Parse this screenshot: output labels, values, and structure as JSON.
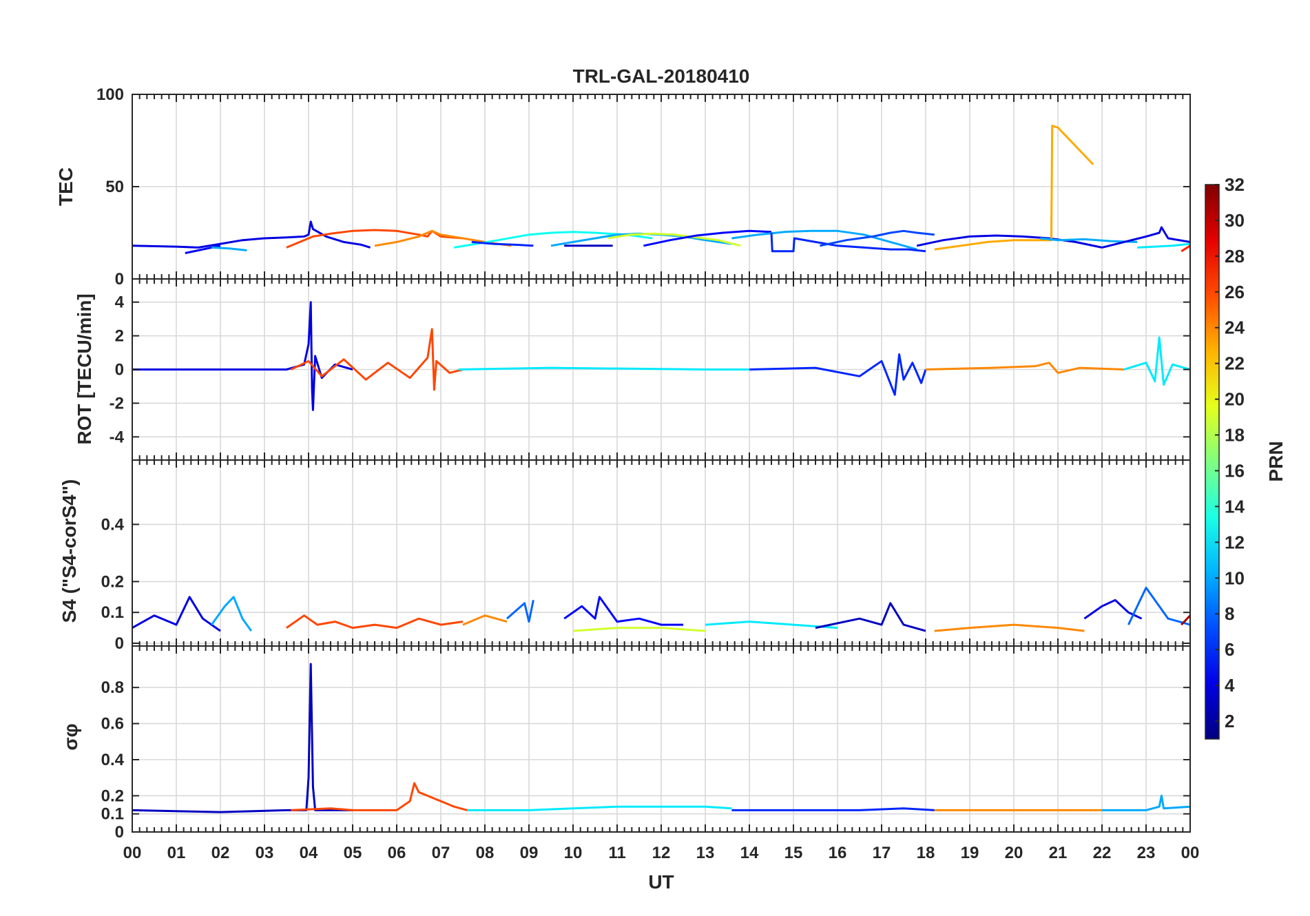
{
  "chart_data": {
    "type": "line",
    "title": "TRL-GAL-20180410",
    "xlabel": "UT",
    "x_tick_labels": [
      "00",
      "01",
      "02",
      "03",
      "04",
      "05",
      "06",
      "07",
      "08",
      "09",
      "10",
      "11",
      "12",
      "13",
      "14",
      "15",
      "16",
      "17",
      "18",
      "19",
      "20",
      "21",
      "22",
      "23",
      "00"
    ],
    "xlim": [
      0,
      24
    ],
    "colorbar": {
      "label": "PRN",
      "colormap": "jet",
      "range": [
        1,
        32
      ],
      "tick_labels": [
        "2",
        "4",
        "6",
        "8",
        "10",
        "12",
        "14",
        "16",
        "18",
        "20",
        "22",
        "24",
        "26",
        "28",
        "30",
        "32"
      ]
    },
    "panels": [
      {
        "ylabel": "TEC",
        "ylim": [
          0,
          100
        ],
        "y_tick_labels": [
          "0",
          "50",
          "100"
        ],
        "series": [
          {
            "prn": 4,
            "x": [
              0,
              1,
              1.5,
              2,
              2.5,
              3,
              3.5,
              3.9,
              4.0,
              4.05,
              4.1,
              4.4,
              4.8,
              5.2,
              5.4
            ],
            "y": [
              18,
              17.5,
              17,
              19,
              21,
              22,
              22.5,
              23,
              24,
              31,
              27,
              23,
              20,
              18.5,
              17
            ]
          },
          {
            "prn": 5,
            "x": [
              1.2,
              1.6,
              2.0
            ],
            "y": [
              14,
              16,
              18
            ]
          },
          {
            "prn": 10,
            "x": [
              1.8,
              2.2,
              2.6
            ],
            "y": [
              17,
              16.5,
              15.5
            ]
          },
          {
            "prn": 26,
            "x": [
              3.5,
              3.8,
              4.1,
              4.5,
              5.0,
              5.5,
              6.0,
              6.5,
              6.7,
              6.8,
              7.0,
              7.5
            ],
            "y": [
              17,
              20,
              23,
              24.5,
              26,
              26.5,
              26,
              24,
              23,
              26,
              23,
              22
            ]
          },
          {
            "prn": 24,
            "x": [
              5.5,
              6.0,
              6.5,
              6.8,
              7.0,
              7.5,
              8.0,
              8.6
            ],
            "y": [
              18,
              20,
              23,
              26,
              24,
              22,
              20,
              18
            ]
          },
          {
            "prn": 13,
            "x": [
              7.3,
              7.8,
              8.3,
              9.0,
              9.5,
              10.0,
              10.5,
              11.2,
              11.8
            ],
            "y": [
              17,
              19,
              21,
              24,
              25,
              25.5,
              25,
              24,
              22
            ]
          },
          {
            "prn": 6,
            "x": [
              7.7,
              8.2,
              8.7,
              9.1
            ],
            "y": [
              20,
              19,
              18.5,
              18
            ]
          },
          {
            "prn": 10,
            "x": [
              9.5,
              10,
              10.5,
              11,
              11.5,
              12,
              12.5,
              13.0,
              13.6
            ],
            "y": [
              18,
              20,
              22,
              24,
              24.5,
              24,
              23,
              21,
              19
            ]
          },
          {
            "prn": 3,
            "x": [
              9.8,
              10.4,
              10.9
            ],
            "y": [
              18,
              18,
              18
            ]
          },
          {
            "prn": 19,
            "x": [
              10.8,
              11.3,
              11.8,
              12.3,
              12.8,
              13.3,
              13.8
            ],
            "y": [
              22,
              24,
              24.5,
              24,
              22.5,
              21,
              18
            ]
          },
          {
            "prn": 5,
            "x": [
              11.6,
              12.2,
              12.8,
              13.4,
              14.0,
              14.5
            ],
            "y": [
              18,
              21,
              23.5,
              25,
              26,
              25.5
            ]
          },
          {
            "prn": 10,
            "x": [
              13.6,
              14.2,
              14.8,
              15.4,
              16.0,
              16.6,
              17.2,
              17.8
            ],
            "y": [
              22,
              24,
              25.5,
              26,
              26,
              24,
              20,
              16
            ]
          },
          {
            "prn": 6,
            "x": [
              14.5,
              14.52,
              15.0,
              15.02,
              15.5,
              16.0,
              16.6,
              17.2,
              17.6,
              18.0
            ],
            "y": [
              25,
              15,
              15,
              22,
              20,
              18,
              17,
              16,
              16,
              15
            ]
          },
          {
            "prn": 7,
            "x": [
              15.6,
              16.2,
              16.8,
              17.2,
              17.5,
              17.8,
              18.2
            ],
            "y": [
              18,
              21,
              23,
              25,
              26,
              25,
              24
            ]
          },
          {
            "prn": 4,
            "x": [
              17.8,
              18.4,
              19.0,
              19.6,
              20.2,
              20.8,
              21.4,
              22.0
            ],
            "y": [
              18,
              21,
              23,
              23.5,
              23,
              22,
              20,
              17
            ]
          },
          {
            "prn": 23,
            "x": [
              18.2,
              18.8,
              19.4,
              20.0,
              20.5,
              20.85,
              20.87,
              21.0,
              21.4,
              21.8
            ],
            "y": [
              16,
              18,
              20,
              21,
              21,
              21,
              83,
              82,
              72,
              62
            ]
          },
          {
            "prn": 10,
            "x": [
              20.6,
              21.0,
              21.6,
              22.2,
              22.8
            ],
            "y": [
              22,
              21,
              21.5,
              20.5,
              20
            ]
          },
          {
            "prn": 4,
            "x": [
              22.0,
              22.5,
              23.0,
              23.3,
              23.35,
              23.5,
              24.0
            ],
            "y": [
              17,
              20,
              23,
              25,
              28,
              22,
              20
            ]
          },
          {
            "prn": 12,
            "x": [
              22.8,
              23.2,
              23.6,
              24.0
            ],
            "y": [
              17,
              17.5,
              18,
              19
            ]
          },
          {
            "prn": 27,
            "x": [
              23.8,
              24.0
            ],
            "y": [
              15,
              18
            ]
          }
        ]
      },
      {
        "ylabel": "ROT [TECU/min]",
        "ylim": [
          -5,
          5
        ],
        "y_tick_labels": [
          "-4",
          "-2",
          "0",
          "2",
          "4"
        ],
        "series": [
          {
            "prn": 4,
            "x": [
              0,
              3.5,
              3.9,
              4.0,
              4.05,
              4.08,
              4.1,
              4.15,
              4.3,
              4.6,
              5.0
            ],
            "y": [
              0,
              0,
              0.3,
              1.5,
              4.0,
              -1.2,
              -2.4,
              0.8,
              -0.5,
              0.3,
              0
            ]
          },
          {
            "prn": 26,
            "x": [
              3.6,
              4.0,
              4.3,
              4.8,
              5.3,
              5.8,
              6.3,
              6.7,
              6.8,
              6.85,
              6.9,
              7.2,
              7.5
            ],
            "y": [
              0,
              0.5,
              -0.4,
              0.6,
              -0.6,
              0.4,
              -0.5,
              0.7,
              2.4,
              -1.2,
              0.5,
              -0.2,
              0
            ]
          },
          {
            "prn": 12,
            "x": [
              7.4,
              9.5,
              13.0,
              14.0
            ],
            "y": [
              0,
              0.1,
              0,
              0
            ]
          },
          {
            "prn": 6,
            "x": [
              14.0,
              15.5,
              16.5,
              17.0,
              17.3,
              17.4,
              17.5,
              17.7,
              17.9,
              18.0
            ],
            "y": [
              0,
              0.1,
              -0.4,
              0.5,
              -1.5,
              0.9,
              -0.6,
              0.4,
              -0.8,
              0
            ]
          },
          {
            "prn": 24,
            "x": [
              18.0,
              19.5,
              20.5,
              20.8,
              21.0,
              21.5,
              22.5
            ],
            "y": [
              0,
              0.1,
              0.2,
              0.4,
              -0.2,
              0.1,
              0
            ]
          },
          {
            "prn": 12,
            "x": [
              22.5,
              23.0,
              23.2,
              23.3,
              23.4,
              23.6,
              24.0
            ],
            "y": [
              0,
              0.4,
              -0.7,
              1.9,
              -0.9,
              0.3,
              0
            ]
          }
        ]
      },
      {
        "ylabel": "S4 (\"S4-corS4\")",
        "ylim": [
          0,
          0.6
        ],
        "y_tick_labels": [
          "0",
          "0.1",
          "0.2",
          "0.4"
        ],
        "series": [
          {
            "prn": 4,
            "x": [
              0,
              0.5,
              1.0,
              1.3,
              1.6,
              2.0
            ],
            "y": [
              0.05,
              0.09,
              0.06,
              0.15,
              0.08,
              0.04
            ]
          },
          {
            "prn": 10,
            "x": [
              1.8,
              2.1,
              2.3,
              2.5,
              2.7
            ],
            "y": [
              0.06,
              0.12,
              0.15,
              0.08,
              0.04
            ]
          },
          {
            "prn": 26,
            "x": [
              3.5,
              3.9,
              4.2,
              4.6,
              5.0,
              5.5,
              6.0,
              6.5,
              7.0,
              7.5
            ],
            "y": [
              0.05,
              0.09,
              0.06,
              0.07,
              0.05,
              0.06,
              0.05,
              0.08,
              0.06,
              0.07
            ]
          },
          {
            "prn": 24,
            "x": [
              7.5,
              8.0,
              8.5
            ],
            "y": [
              0.06,
              0.09,
              0.07
            ]
          },
          {
            "prn": 8,
            "x": [
              8.5,
              8.9,
              9.0,
              9.1
            ],
            "y": [
              0.08,
              0.13,
              0.07,
              0.14
            ]
          },
          {
            "prn": 5,
            "x": [
              9.8,
              10.2,
              10.5,
              10.6,
              11.0,
              11.5,
              12.0,
              12.5
            ],
            "y": [
              0.08,
              0.12,
              0.08,
              0.15,
              0.07,
              0.08,
              0.06,
              0.06
            ]
          },
          {
            "prn": 19,
            "x": [
              10.0,
              11.0,
              12.0,
              13.0
            ],
            "y": [
              0.04,
              0.05,
              0.05,
              0.04
            ]
          },
          {
            "prn": 12,
            "x": [
              13.0,
              14.0,
              15.0,
              16.0
            ],
            "y": [
              0.06,
              0.07,
              0.06,
              0.05
            ]
          },
          {
            "prn": 3,
            "x": [
              15.5,
              16.5,
              17.0,
              17.2,
              17.5,
              18.0
            ],
            "y": [
              0.05,
              0.08,
              0.06,
              0.13,
              0.06,
              0.04
            ]
          },
          {
            "prn": 24,
            "x": [
              18.2,
              19.0,
              20.0,
              21.0,
              21.6
            ],
            "y": [
              0.04,
              0.05,
              0.06,
              0.05,
              0.04
            ]
          },
          {
            "prn": 4,
            "x": [
              21.6,
              22.0,
              22.3,
              22.6,
              22.9
            ],
            "y": [
              0.08,
              0.12,
              0.14,
              0.1,
              0.08
            ]
          },
          {
            "prn": 8,
            "x": [
              22.6,
              23.0,
              23.5,
              24.0
            ],
            "y": [
              0.06,
              0.18,
              0.08,
              0.06
            ]
          },
          {
            "prn": 31,
            "x": [
              23.8,
              24.0
            ],
            "y": [
              0.06,
              0.09
            ]
          }
        ]
      },
      {
        "ylabel": "σφ",
        "ylim": [
          0,
          1
        ],
        "y_tick_labels": [
          "0",
          "0.1",
          "0.2",
          "0.4",
          "0.6",
          "0.8"
        ],
        "series": [
          {
            "prn": 3,
            "x": [
              0,
              2.0,
              3.5,
              3.95,
              4.0,
              4.05,
              4.1,
              4.15,
              4.3,
              5.0
            ],
            "y": [
              0.12,
              0.11,
              0.12,
              0.12,
              0.3,
              0.93,
              0.25,
              0.12,
              0.12,
              0.12
            ]
          },
          {
            "prn": 26,
            "x": [
              3.6,
              4.5,
              5.0,
              5.5,
              6.0,
              6.3,
              6.4,
              6.5,
              6.7,
              6.9,
              7.1,
              7.3,
              7.6
            ],
            "y": [
              0.12,
              0.13,
              0.12,
              0.12,
              0.12,
              0.17,
              0.27,
              0.22,
              0.2,
              0.18,
              0.16,
              0.14,
              0.12
            ]
          },
          {
            "prn": 12,
            "x": [
              7.6,
              9.0,
              10.0,
              11.0,
              12.0,
              13.0,
              13.6
            ],
            "y": [
              0.12,
              0.12,
              0.13,
              0.14,
              0.14,
              0.14,
              0.13
            ]
          },
          {
            "prn": 6,
            "x": [
              13.6,
              15.0,
              16.5,
              17.5,
              18.2
            ],
            "y": [
              0.12,
              0.12,
              0.12,
              0.13,
              0.12
            ]
          },
          {
            "prn": 24,
            "x": [
              18.2,
              19.5,
              21.0,
              22.0
            ],
            "y": [
              0.12,
              0.12,
              0.12,
              0.12
            ]
          },
          {
            "prn": 10,
            "x": [
              22.0,
              23.0,
              23.3,
              23.35,
              23.4,
              24.0
            ],
            "y": [
              0.12,
              0.12,
              0.14,
              0.2,
              0.13,
              0.14
            ]
          }
        ]
      }
    ]
  }
}
